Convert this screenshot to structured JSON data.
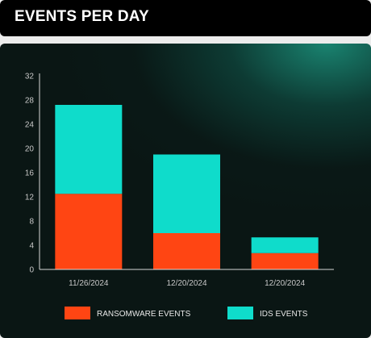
{
  "header": {
    "title": "EVENTS PER DAY"
  },
  "chart_data": {
    "type": "bar",
    "stacked": true,
    "categories": [
      "11/26/2024",
      "12/20/2024",
      "12/20/2024"
    ],
    "series": [
      {
        "name": "RANSOMWARE EVENTS",
        "values": [
          12.5,
          6,
          2.7
        ],
        "color": "#ff4513"
      },
      {
        "name": "IDS EVENTS",
        "values": [
          14.7,
          13,
          2.6
        ],
        "color": "#0fdccb"
      }
    ],
    "ylim": [
      0,
      32
    ],
    "yticks": [
      0,
      4,
      8,
      12,
      16,
      20,
      24,
      28,
      32
    ],
    "title": "EVENTS PER DAY",
    "xlabel": "",
    "ylabel": "",
    "grid": false,
    "legend_position": "bottom"
  },
  "colors": {
    "background": "#0a1614",
    "accent_teal": "#0fdccb",
    "accent_orange": "#ff4513",
    "axis": "#d8d8d8",
    "tick_label": "#c8c8c8"
  }
}
